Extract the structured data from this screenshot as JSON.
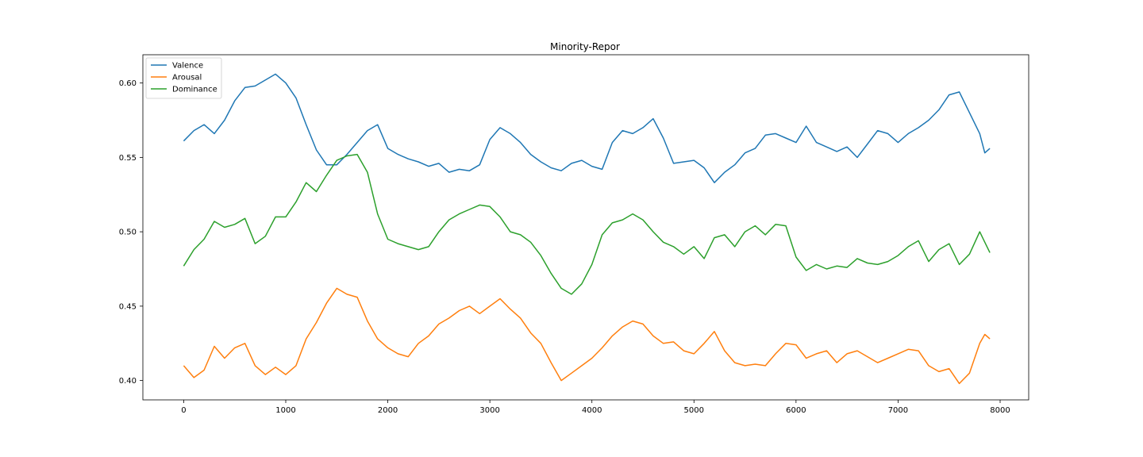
{
  "chart_data": {
    "type": "line",
    "title": "Minority-Repor",
    "xlabel": "",
    "ylabel": "",
    "xlim": [
      -400,
      8280
    ],
    "ylim": [
      0.387,
      0.619
    ],
    "xticks": [
      0,
      1000,
      2000,
      3000,
      4000,
      5000,
      6000,
      7000,
      8000
    ],
    "xtick_labels": [
      "0",
      "1000",
      "2000",
      "3000",
      "4000",
      "5000",
      "6000",
      "7000",
      "8000"
    ],
    "yticks": [
      0.4,
      0.45,
      0.5,
      0.55,
      0.6
    ],
    "ytick_labels": [
      "0.40",
      "0.45",
      "0.50",
      "0.55",
      "0.60"
    ],
    "grid": false,
    "legend_position": "upper-left",
    "series": [
      {
        "name": "Valence",
        "color": "#1f77b4",
        "x": [
          0,
          100,
          200,
          300,
          400,
          500,
          600,
          700,
          800,
          900,
          1000,
          1100,
          1200,
          1300,
          1400,
          1500,
          1600,
          1700,
          1800,
          1900,
          2000,
          2100,
          2200,
          2300,
          2400,
          2500,
          2600,
          2700,
          2800,
          2900,
          3000,
          3100,
          3200,
          3300,
          3400,
          3500,
          3600,
          3700,
          3800,
          3900,
          4000,
          4100,
          4200,
          4300,
          4400,
          4500,
          4600,
          4700,
          4800,
          4900,
          5000,
          5100,
          5200,
          5300,
          5400,
          5500,
          5600,
          5700,
          5800,
          5900,
          6000,
          6100,
          6200,
          6300,
          6400,
          6500,
          6600,
          6700,
          6800,
          6900,
          7000,
          7100,
          7200,
          7300,
          7400,
          7500,
          7600,
          7700,
          7800,
          7850,
          7900
        ],
        "y": [
          0.561,
          0.568,
          0.572,
          0.566,
          0.575,
          0.588,
          0.597,
          0.598,
          0.602,
          0.606,
          0.6,
          0.59,
          0.572,
          0.555,
          0.545,
          0.545,
          0.552,
          0.56,
          0.568,
          0.572,
          0.556,
          0.552,
          0.549,
          0.547,
          0.544,
          0.546,
          0.54,
          0.542,
          0.541,
          0.545,
          0.562,
          0.57,
          0.566,
          0.56,
          0.552,
          0.547,
          0.543,
          0.541,
          0.546,
          0.548,
          0.544,
          0.542,
          0.56,
          0.568,
          0.566,
          0.57,
          0.576,
          0.563,
          0.546,
          0.547,
          0.548,
          0.543,
          0.533,
          0.54,
          0.545,
          0.553,
          0.556,
          0.565,
          0.566,
          0.563,
          0.56,
          0.571,
          0.56,
          0.557,
          0.554,
          0.557,
          0.55,
          0.559,
          0.568,
          0.566,
          0.56,
          0.566,
          0.57,
          0.575,
          0.582,
          0.592,
          0.594,
          0.58,
          0.566,
          0.553,
          0.556
        ]
      },
      {
        "name": "Arousal",
        "color": "#ff7f0e",
        "x": [
          0,
          100,
          200,
          300,
          400,
          500,
          600,
          700,
          800,
          900,
          1000,
          1100,
          1200,
          1300,
          1400,
          1500,
          1600,
          1700,
          1800,
          1900,
          2000,
          2100,
          2200,
          2300,
          2400,
          2500,
          2600,
          2700,
          2800,
          2900,
          3000,
          3100,
          3200,
          3300,
          3400,
          3500,
          3600,
          3700,
          3800,
          3900,
          4000,
          4100,
          4200,
          4300,
          4400,
          4500,
          4600,
          4700,
          4800,
          4900,
          5000,
          5100,
          5200,
          5300,
          5400,
          5500,
          5600,
          5700,
          5800,
          5900,
          6000,
          6100,
          6200,
          6300,
          6400,
          6500,
          6600,
          6700,
          6800,
          6900,
          7000,
          7100,
          7200,
          7300,
          7400,
          7500,
          7600,
          7700,
          7800,
          7850,
          7900
        ],
        "y": [
          0.41,
          0.402,
          0.407,
          0.423,
          0.415,
          0.422,
          0.425,
          0.41,
          0.404,
          0.409,
          0.404,
          0.41,
          0.428,
          0.439,
          0.452,
          0.462,
          0.458,
          0.456,
          0.44,
          0.428,
          0.422,
          0.418,
          0.416,
          0.425,
          0.43,
          0.438,
          0.442,
          0.447,
          0.45,
          0.445,
          0.45,
          0.455,
          0.448,
          0.442,
          0.432,
          0.425,
          0.412,
          0.4,
          0.405,
          0.41,
          0.415,
          0.422,
          0.43,
          0.436,
          0.44,
          0.438,
          0.43,
          0.425,
          0.426,
          0.42,
          0.418,
          0.425,
          0.433,
          0.42,
          0.412,
          0.41,
          0.411,
          0.41,
          0.418,
          0.425,
          0.424,
          0.415,
          0.418,
          0.42,
          0.412,
          0.418,
          0.42,
          0.416,
          0.412,
          0.415,
          0.418,
          0.421,
          0.42,
          0.41,
          0.406,
          0.408,
          0.398,
          0.405,
          0.425,
          0.431,
          0.428
        ]
      },
      {
        "name": "Dominance",
        "color": "#2ca02c",
        "x": [
          0,
          100,
          200,
          300,
          400,
          500,
          600,
          700,
          800,
          900,
          1000,
          1100,
          1200,
          1300,
          1400,
          1500,
          1600,
          1700,
          1800,
          1900,
          2000,
          2100,
          2200,
          2300,
          2400,
          2500,
          2600,
          2700,
          2800,
          2900,
          3000,
          3100,
          3200,
          3300,
          3400,
          3500,
          3600,
          3700,
          3800,
          3900,
          4000,
          4100,
          4200,
          4300,
          4400,
          4500,
          4600,
          4700,
          4800,
          4900,
          5000,
          5100,
          5200,
          5300,
          5400,
          5500,
          5600,
          5700,
          5800,
          5900,
          6000,
          6100,
          6200,
          6300,
          6400,
          6500,
          6600,
          6700,
          6800,
          6900,
          7000,
          7100,
          7200,
          7300,
          7400,
          7500,
          7600,
          7700,
          7800,
          7850,
          7900
        ],
        "y": [
          0.477,
          0.488,
          0.495,
          0.507,
          0.503,
          0.505,
          0.509,
          0.492,
          0.497,
          0.51,
          0.51,
          0.52,
          0.533,
          0.527,
          0.538,
          0.548,
          0.551,
          0.552,
          0.54,
          0.512,
          0.495,
          0.492,
          0.49,
          0.488,
          0.49,
          0.5,
          0.508,
          0.512,
          0.515,
          0.518,
          0.517,
          0.51,
          0.5,
          0.498,
          0.493,
          0.484,
          0.472,
          0.462,
          0.458,
          0.465,
          0.478,
          0.498,
          0.506,
          0.508,
          0.512,
          0.508,
          0.5,
          0.493,
          0.49,
          0.485,
          0.49,
          0.482,
          0.496,
          0.498,
          0.49,
          0.5,
          0.504,
          0.498,
          0.505,
          0.504,
          0.483,
          0.474,
          0.478,
          0.475,
          0.477,
          0.476,
          0.482,
          0.479,
          0.478,
          0.48,
          0.484,
          0.49,
          0.494,
          0.48,
          0.488,
          0.492,
          0.478,
          0.485,
          0.5,
          0.493,
          0.486
        ]
      }
    ]
  }
}
